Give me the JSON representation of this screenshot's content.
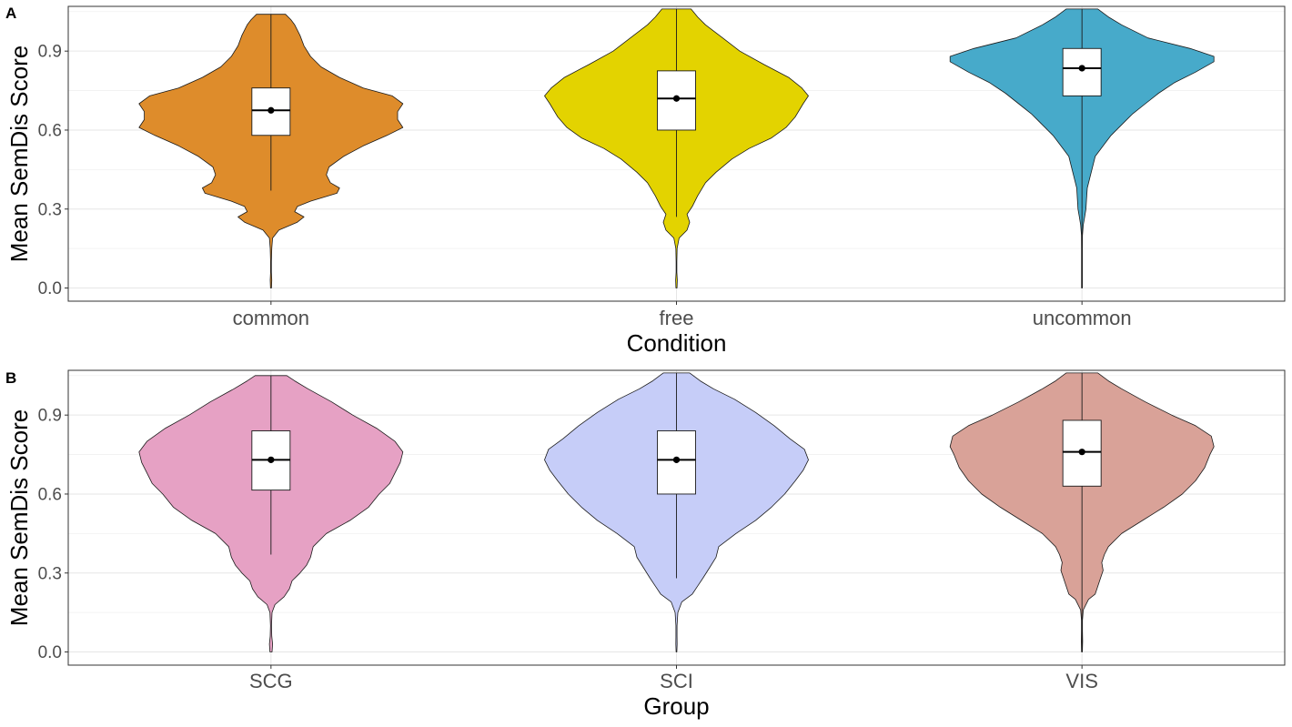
{
  "chart_data": [
    {
      "type": "violin",
      "panel_label": "A",
      "xlabel": "Condition",
      "ylabel": "Mean SemDis Score",
      "ylim": [
        -0.05,
        1.07
      ],
      "yticks": [
        0.0,
        0.3,
        0.6,
        0.9
      ],
      "ytick_labels": [
        "0.0",
        "0.3",
        "0.6",
        "0.9"
      ],
      "grid": true,
      "categories": [
        "common",
        "free",
        "uncommon"
      ],
      "colors": [
        "#DE8C2B",
        "#E3D300",
        "#47AACA"
      ],
      "violins": [
        {
          "category": "common",
          "ymin": 0.0,
          "ymax": 1.04,
          "box": {
            "q1": 0.58,
            "median": 0.675,
            "q3": 0.76,
            "mean": 0.675,
            "whisker_low": 0.37,
            "whisker_high": 1.04
          },
          "profile": [
            [
              0.0,
              0.004
            ],
            [
              0.03,
              0.006
            ],
            [
              0.06,
              0.003
            ],
            [
              0.1,
              0.003
            ],
            [
              0.15,
              0.006
            ],
            [
              0.19,
              0.012
            ],
            [
              0.22,
              0.06
            ],
            [
              0.25,
              0.2
            ],
            [
              0.27,
              0.25
            ],
            [
              0.29,
              0.18
            ],
            [
              0.31,
              0.2
            ],
            [
              0.33,
              0.3
            ],
            [
              0.36,
              0.5
            ],
            [
              0.38,
              0.52
            ],
            [
              0.4,
              0.45
            ],
            [
              0.43,
              0.42
            ],
            [
              0.46,
              0.44
            ],
            [
              0.5,
              0.55
            ],
            [
              0.54,
              0.7
            ],
            [
              0.58,
              0.88
            ],
            [
              0.61,
              1.0
            ],
            [
              0.64,
              0.96
            ],
            [
              0.67,
              0.96
            ],
            [
              0.7,
              1.0
            ],
            [
              0.73,
              0.92
            ],
            [
              0.76,
              0.7
            ],
            [
              0.8,
              0.52
            ],
            [
              0.84,
              0.38
            ],
            [
              0.88,
              0.3
            ],
            [
              0.92,
              0.25
            ],
            [
              0.96,
              0.22
            ],
            [
              1.0,
              0.18
            ],
            [
              1.02,
              0.15
            ],
            [
              1.04,
              0.11
            ]
          ]
        },
        {
          "category": "free",
          "ymin": 0.0,
          "ymax": 1.06,
          "box": {
            "q1": 0.6,
            "median": 0.72,
            "q3": 0.825,
            "mean": 0.72,
            "whisker_low": 0.27,
            "whisker_high": 1.06
          },
          "profile": [
            [
              0.0,
              0.004
            ],
            [
              0.03,
              0.006
            ],
            [
              0.06,
              0.003
            ],
            [
              0.1,
              0.003
            ],
            [
              0.15,
              0.005
            ],
            [
              0.19,
              0.02
            ],
            [
              0.22,
              0.08
            ],
            [
              0.25,
              0.1
            ],
            [
              0.28,
              0.08
            ],
            [
              0.31,
              0.12
            ],
            [
              0.35,
              0.16
            ],
            [
              0.4,
              0.22
            ],
            [
              0.44,
              0.3
            ],
            [
              0.49,
              0.42
            ],
            [
              0.53,
              0.55
            ],
            [
              0.57,
              0.72
            ],
            [
              0.61,
              0.83
            ],
            [
              0.65,
              0.9
            ],
            [
              0.7,
              0.96
            ],
            [
              0.73,
              1.0
            ],
            [
              0.76,
              0.95
            ],
            [
              0.8,
              0.85
            ],
            [
              0.85,
              0.66
            ],
            [
              0.9,
              0.48
            ],
            [
              0.95,
              0.35
            ],
            [
              1.0,
              0.22
            ],
            [
              1.03,
              0.16
            ],
            [
              1.06,
              0.11
            ]
          ]
        },
        {
          "category": "uncommon",
          "ymin": 0.0,
          "ymax": 1.06,
          "box": {
            "q1": 0.73,
            "median": 0.835,
            "q3": 0.91,
            "mean": 0.835,
            "whisker_low": 0.0,
            "whisker_high": 1.06
          },
          "profile": [
            [
              0.0,
              0.003
            ],
            [
              0.05,
              0.003
            ],
            [
              0.1,
              0.003
            ],
            [
              0.15,
              0.003
            ],
            [
              0.2,
              0.004
            ],
            [
              0.24,
              0.01
            ],
            [
              0.27,
              0.02
            ],
            [
              0.3,
              0.03
            ],
            [
              0.34,
              0.035
            ],
            [
              0.38,
              0.04
            ],
            [
              0.42,
              0.06
            ],
            [
              0.46,
              0.08
            ],
            [
              0.5,
              0.1
            ],
            [
              0.54,
              0.16
            ],
            [
              0.58,
              0.22
            ],
            [
              0.62,
              0.3
            ],
            [
              0.66,
              0.38
            ],
            [
              0.7,
              0.48
            ],
            [
              0.74,
              0.58
            ],
            [
              0.78,
              0.7
            ],
            [
              0.82,
              0.86
            ],
            [
              0.86,
              1.0
            ],
            [
              0.88,
              1.0
            ],
            [
              0.91,
              0.82
            ],
            [
              0.95,
              0.5
            ],
            [
              1.0,
              0.3
            ],
            [
              1.03,
              0.2
            ],
            [
              1.06,
              0.12
            ]
          ]
        }
      ]
    },
    {
      "type": "violin",
      "panel_label": "B",
      "xlabel": "Group",
      "ylabel": "Mean SemDis Score",
      "ylim": [
        -0.05,
        1.07
      ],
      "yticks": [
        0.0,
        0.3,
        0.6,
        0.9
      ],
      "ytick_labels": [
        "0.0",
        "0.3",
        "0.6",
        "0.9"
      ],
      "grid": true,
      "categories": [
        "SCG",
        "SCI",
        "VIS"
      ],
      "colors": [
        "#E6A1C4",
        "#C6CDF8",
        "#D9A298"
      ],
      "violins": [
        {
          "category": "SCG",
          "ymin": 0.0,
          "ymax": 1.05,
          "box": {
            "q1": 0.615,
            "median": 0.73,
            "q3": 0.84,
            "mean": 0.73,
            "whisker_low": 0.37,
            "whisker_high": 1.05
          },
          "profile": [
            [
              0.0,
              0.008
            ],
            [
              0.03,
              0.012
            ],
            [
              0.06,
              0.006
            ],
            [
              0.1,
              0.004
            ],
            [
              0.15,
              0.008
            ],
            [
              0.18,
              0.03
            ],
            [
              0.21,
              0.1
            ],
            [
              0.24,
              0.14
            ],
            [
              0.27,
              0.16
            ],
            [
              0.3,
              0.22
            ],
            [
              0.33,
              0.27
            ],
            [
              0.36,
              0.3
            ],
            [
              0.4,
              0.32
            ],
            [
              0.45,
              0.42
            ],
            [
              0.5,
              0.6
            ],
            [
              0.55,
              0.74
            ],
            [
              0.6,
              0.82
            ],
            [
              0.64,
              0.9
            ],
            [
              0.68,
              0.94
            ],
            [
              0.72,
              0.98
            ],
            [
              0.76,
              1.0
            ],
            [
              0.8,
              0.94
            ],
            [
              0.85,
              0.8
            ],
            [
              0.9,
              0.62
            ],
            [
              0.95,
              0.46
            ],
            [
              1.0,
              0.28
            ],
            [
              1.03,
              0.18
            ],
            [
              1.05,
              0.12
            ]
          ]
        },
        {
          "category": "SCI",
          "ymin": 0.0,
          "ymax": 1.06,
          "box": {
            "q1": 0.6,
            "median": 0.73,
            "q3": 0.84,
            "mean": 0.73,
            "whisker_low": 0.28,
            "whisker_high": 1.06
          },
          "profile": [
            [
              0.0,
              0.003
            ],
            [
              0.03,
              0.005
            ],
            [
              0.06,
              0.004
            ],
            [
              0.1,
              0.004
            ],
            [
              0.15,
              0.01
            ],
            [
              0.19,
              0.04
            ],
            [
              0.22,
              0.12
            ],
            [
              0.25,
              0.16
            ],
            [
              0.28,
              0.2
            ],
            [
              0.32,
              0.25
            ],
            [
              0.36,
              0.3
            ],
            [
              0.4,
              0.32
            ],
            [
              0.45,
              0.45
            ],
            [
              0.5,
              0.6
            ],
            [
              0.55,
              0.72
            ],
            [
              0.6,
              0.82
            ],
            [
              0.65,
              0.9
            ],
            [
              0.69,
              0.96
            ],
            [
              0.73,
              1.0
            ],
            [
              0.77,
              0.97
            ],
            [
              0.81,
              0.86
            ],
            [
              0.86,
              0.74
            ],
            [
              0.91,
              0.6
            ],
            [
              0.96,
              0.44
            ],
            [
              1.0,
              0.28
            ],
            [
              1.03,
              0.18
            ],
            [
              1.06,
              0.1
            ]
          ]
        },
        {
          "category": "VIS",
          "ymin": 0.0,
          "ymax": 1.06,
          "box": {
            "q1": 0.63,
            "median": 0.76,
            "q3": 0.88,
            "mean": 0.76,
            "whisker_low": 0.0,
            "whisker_high": 1.06
          },
          "profile": [
            [
              0.0,
              0.003
            ],
            [
              0.04,
              0.005
            ],
            [
              0.08,
              0.004
            ],
            [
              0.12,
              0.004
            ],
            [
              0.16,
              0.01
            ],
            [
              0.2,
              0.05
            ],
            [
              0.22,
              0.1
            ],
            [
              0.25,
              0.12
            ],
            [
              0.28,
              0.14
            ],
            [
              0.31,
              0.16
            ],
            [
              0.34,
              0.15
            ],
            [
              0.37,
              0.17
            ],
            [
              0.4,
              0.2
            ],
            [
              0.45,
              0.3
            ],
            [
              0.5,
              0.46
            ],
            [
              0.55,
              0.62
            ],
            [
              0.6,
              0.76
            ],
            [
              0.65,
              0.86
            ],
            [
              0.7,
              0.93
            ],
            [
              0.75,
              0.97
            ],
            [
              0.78,
              1.0
            ],
            [
              0.82,
              0.98
            ],
            [
              0.86,
              0.86
            ],
            [
              0.9,
              0.68
            ],
            [
              0.95,
              0.48
            ],
            [
              1.0,
              0.3
            ],
            [
              1.03,
              0.2
            ],
            [
              1.06,
              0.12
            ]
          ]
        }
      ]
    }
  ]
}
